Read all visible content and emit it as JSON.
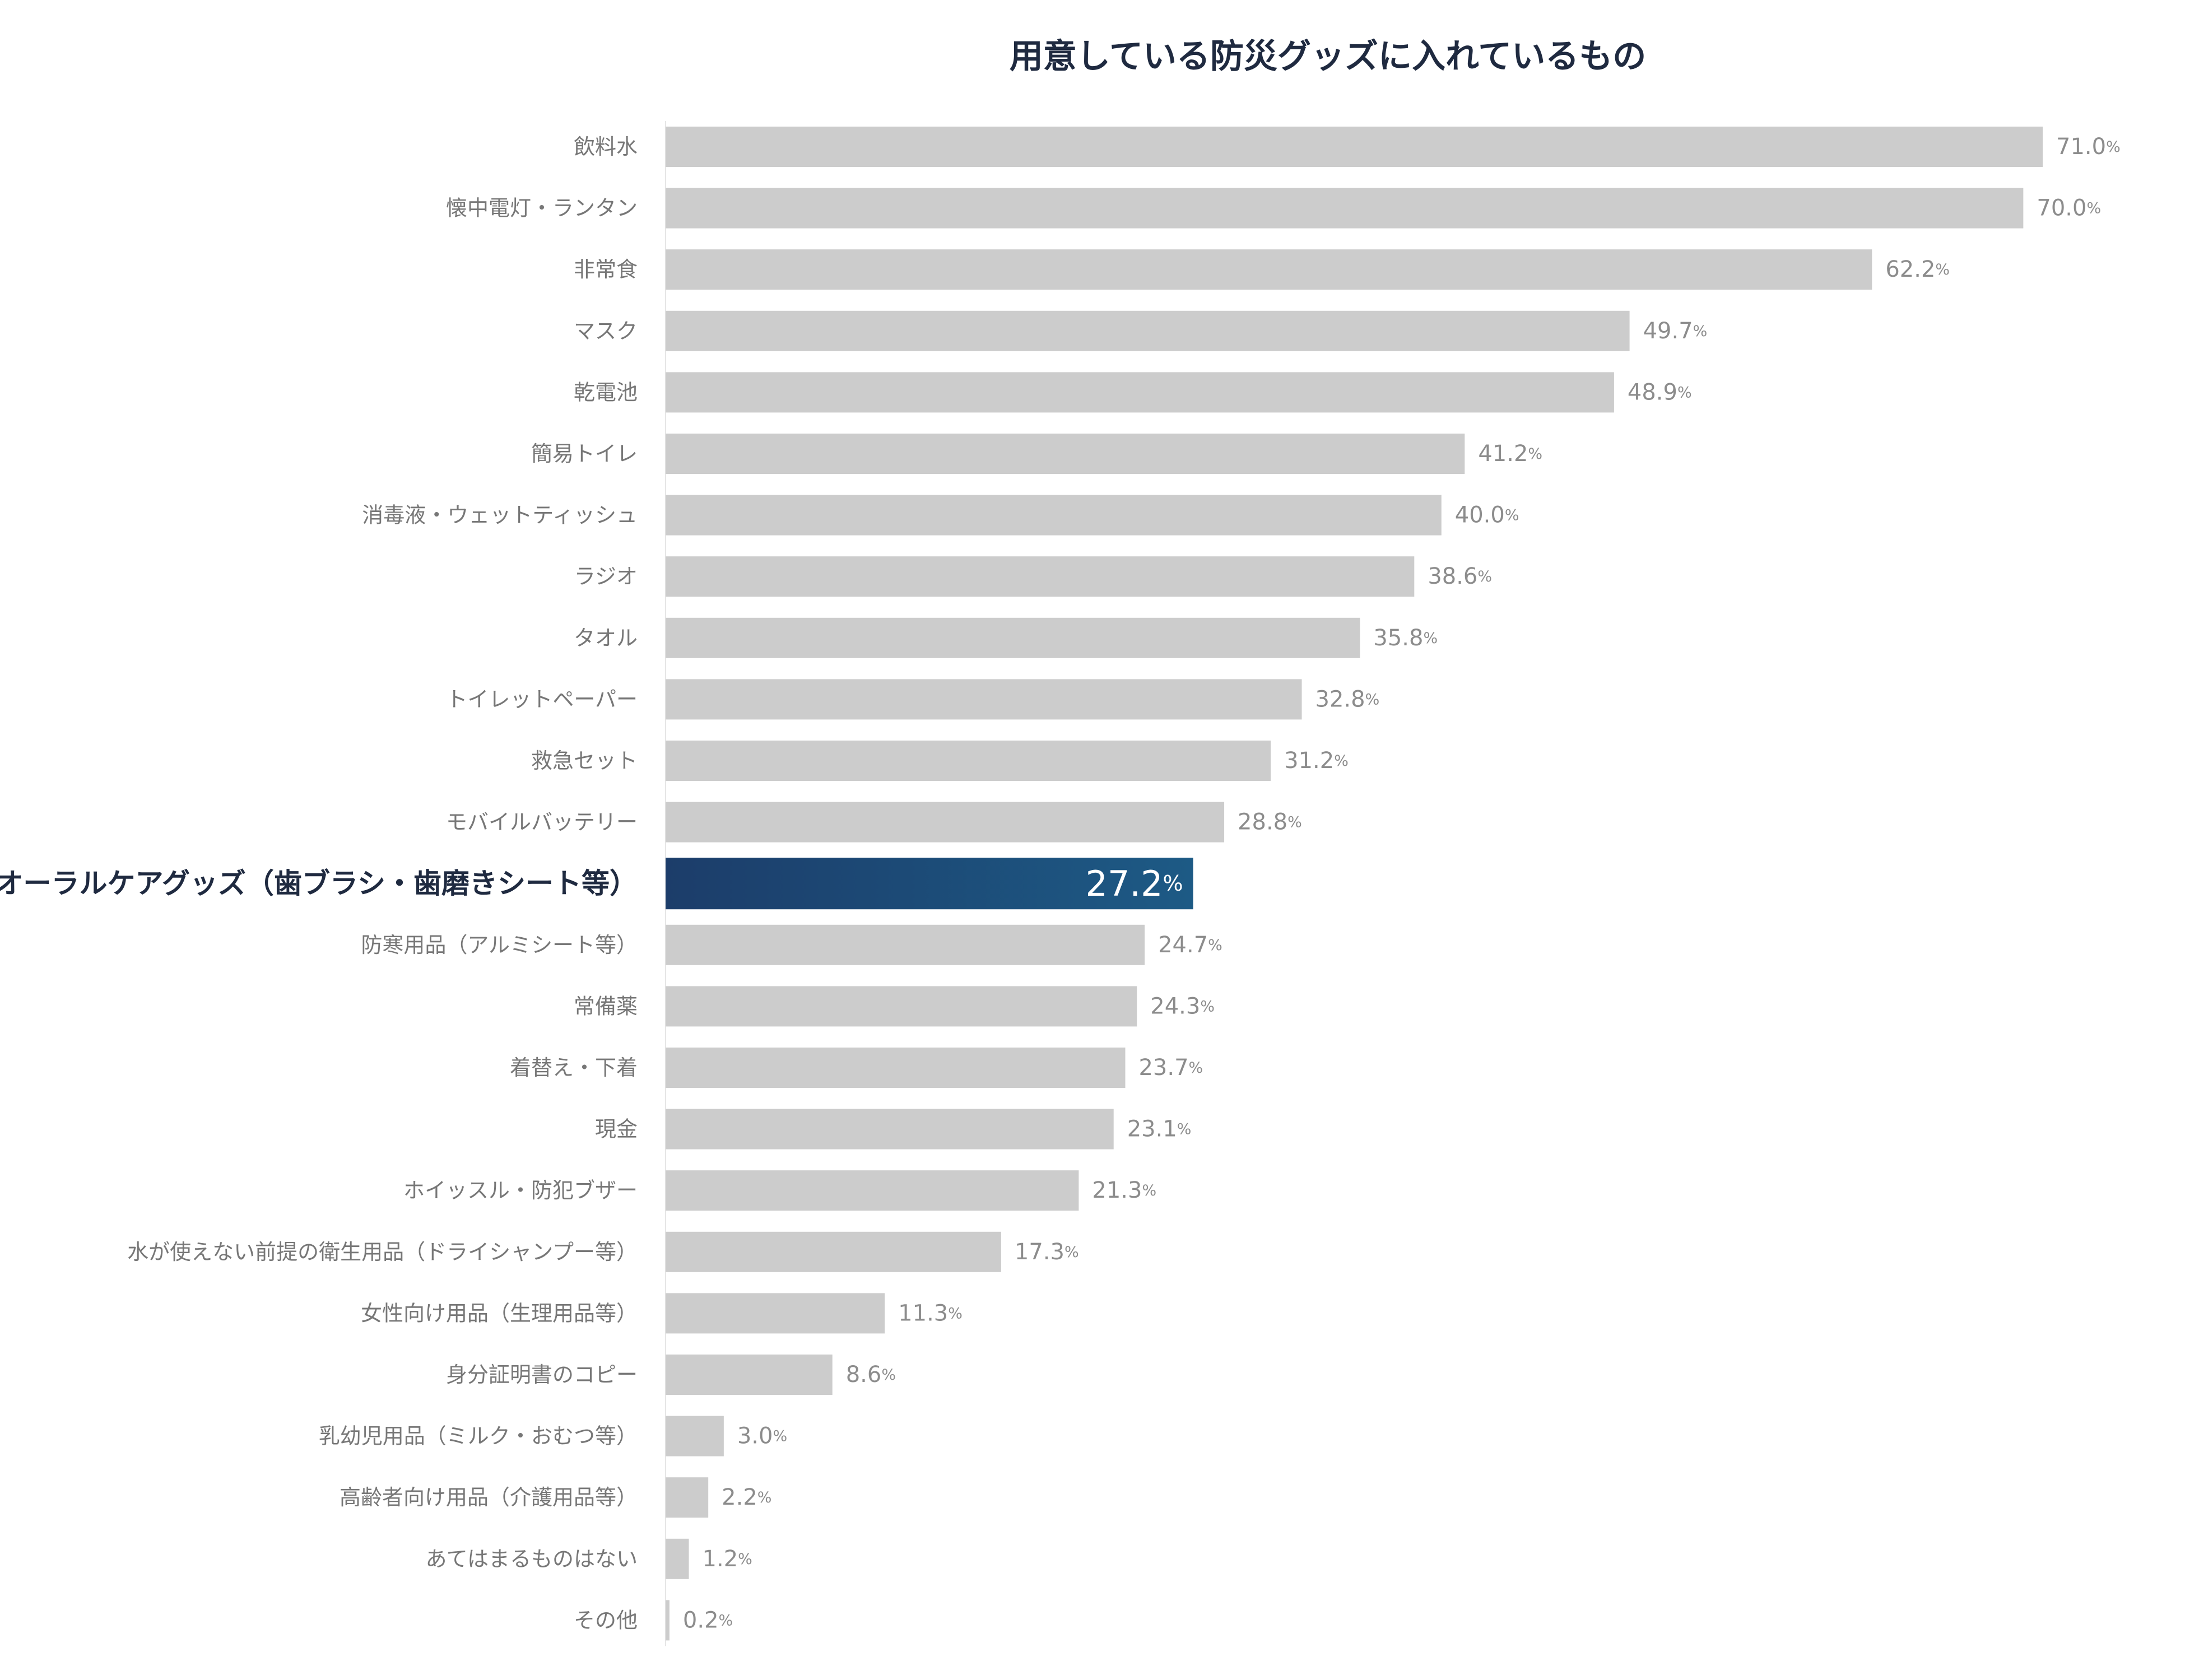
{
  "chart_data": {
    "type": "bar",
    "orientation": "horizontal",
    "title": "用意している防災グッズに入れているもの",
    "xlabel": "",
    "ylabel": "",
    "xlim": [
      0,
      71.0
    ],
    "grid": false,
    "unit": "%",
    "highlight_index": 12,
    "colors": {
      "default_bar": "#cccccc",
      "highlight_bar_start": "#1c3d6a",
      "highlight_bar_end": "#1d5a85",
      "label_text": "#777777",
      "highlight_label_text": "#1f2a40",
      "value_text": "#8c8c8c",
      "highlight_value_text": "#ffffff"
    },
    "categories": [
      "飲料水",
      "懐中電灯・ランタン",
      "非常食",
      "マスク",
      "乾電池",
      "簡易トイレ",
      "消毒液・ウェットティッシュ",
      "ラジオ",
      "タオル",
      "トイレットペーパー",
      "救急セット",
      "モバイルバッテリー",
      "オーラルケアグッズ（歯ブラシ・歯磨きシート等）",
      "防寒用品（アルミシート等）",
      "常備薬",
      "着替え・下着",
      "現金",
      "ホイッスル・防犯ブザー",
      "水が使えない前提の衛生用品（ドライシャンプー等）",
      "女性向け用品（生理用品等）",
      "身分証明書のコピー",
      "乳幼児用品（ミルク・おむつ等）",
      "高齢者向け用品（介護用品等）",
      "あてはまるものはない",
      "その他"
    ],
    "values": [
      71.0,
      70.0,
      62.2,
      49.7,
      48.9,
      41.2,
      40.0,
      38.6,
      35.8,
      32.8,
      31.2,
      28.8,
      27.2,
      24.7,
      24.3,
      23.7,
      23.1,
      21.3,
      17.3,
      11.3,
      8.6,
      3.0,
      2.2,
      1.2,
      0.2
    ],
    "value_labels": [
      "71.0",
      "70.0",
      "62.2",
      "49.7",
      "48.9",
      "41.2",
      "40.0",
      "38.6",
      "35.8",
      "32.8",
      "31.2",
      "28.8",
      "27.2",
      "24.7",
      "24.3",
      "23.7",
      "23.1",
      "21.3",
      "17.3",
      "11.3",
      "8.6",
      "3.0",
      "2.2",
      "1.2",
      "0.2"
    ]
  }
}
